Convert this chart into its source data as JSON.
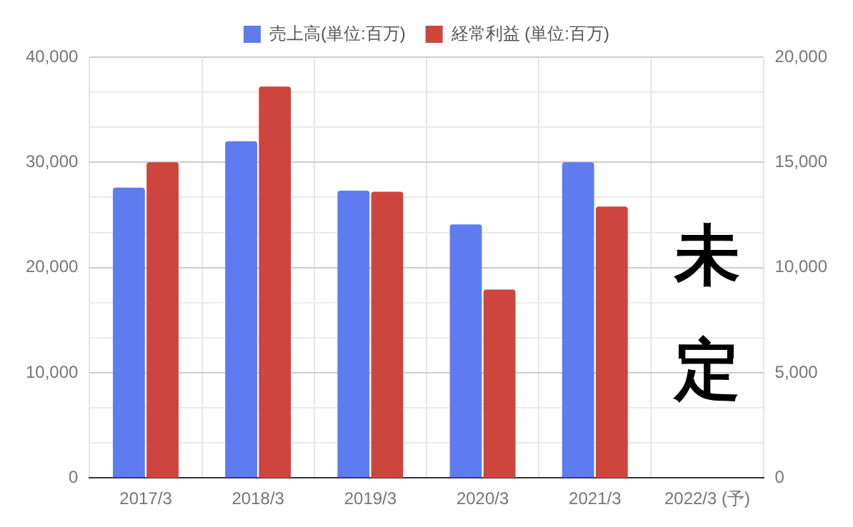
{
  "chart_data": {
    "type": "bar",
    "categories": [
      "2017/3",
      "2018/3",
      "2019/3",
      "2020/3",
      "2021/3",
      "2022/3 (予)"
    ],
    "series": [
      {
        "name": "売上高(単位:百万)",
        "color": "#5f7bf0",
        "values": [
          27600,
          32000,
          27300,
          24100,
          30000,
          null
        ]
      },
      {
        "name": "経常利益 (単位:百万)",
        "color": "#cd453d",
        "axis": "y2",
        "values": [
          15000,
          18600,
          13600,
          8950,
          12900,
          null
        ]
      }
    ],
    "ylim": [
      0,
      40000
    ],
    "yticks": [
      0,
      {
        "value": 3333.33,
        "label": null
      },
      {
        "value": 6666.67,
        "label": null
      },
      {
        "value": 10000,
        "label": "10,000"
      },
      {
        "value": 13333.33,
        "label": null
      },
      {
        "value": 16666.67,
        "label": null
      },
      {
        "value": 20000,
        "label": "20,000"
      },
      {
        "value": 23333.33,
        "label": null
      },
      {
        "value": 26666.67,
        "label": null
      },
      {
        "value": 30000,
        "label": "30,000"
      },
      {
        "value": 33333.33,
        "label": null
      },
      {
        "value": 36666.67,
        "label": null
      },
      {
        "value": 40000,
        "label": "40,000"
      }
    ],
    "y2lim": [
      0,
      20000
    ],
    "y2ticks": [
      0,
      {
        "value": 5000,
        "label": "5,000"
      },
      {
        "value": 10000,
        "label": "10,000"
      },
      {
        "value": 15000,
        "label": "15,000"
      },
      {
        "value": 20000,
        "label": "20,000"
      }
    ],
    "annotations": [
      "未定"
    ],
    "grid": true,
    "legend": "top"
  }
}
